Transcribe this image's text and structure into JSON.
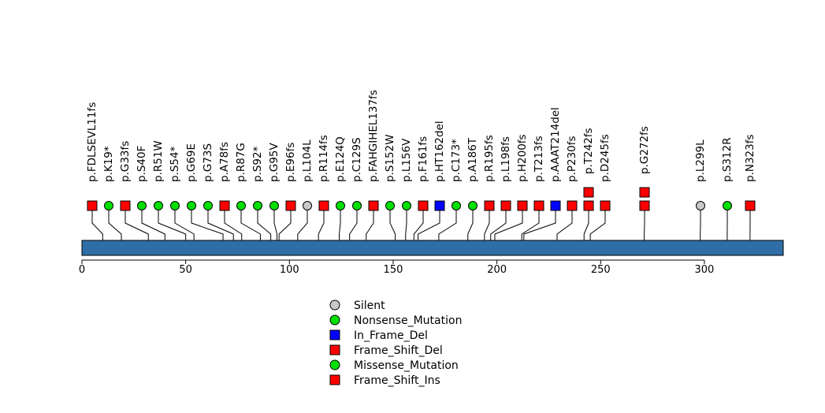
{
  "chart_data": {
    "type": "lollipop",
    "title": "",
    "xlabel": "",
    "ylabel": "",
    "xlim": [
      0,
      338
    ],
    "x_ticks": [
      0,
      50,
      100,
      150,
      200,
      250,
      300
    ],
    "protein_length": 338,
    "colors": {
      "Silent": "#c8c8c8",
      "Nonsense_Mutation": "#00e000",
      "In_Frame_Del": "#0000ff",
      "Frame_Shift_Del": "#ff0000",
      "Missense_Mutation": "#00e000",
      "Frame_Shift_Ins": "#ff0000",
      "protein_bar": "#2f6ea6"
    },
    "legend": [
      {
        "label": "Silent",
        "shape": "circle",
        "type": "Silent"
      },
      {
        "label": "Nonsense_Mutation",
        "shape": "circle",
        "type": "Nonsense_Mutation"
      },
      {
        "label": "In_Frame_Del",
        "shape": "square",
        "type": "In_Frame_Del"
      },
      {
        "label": "Frame_Shift_Del",
        "shape": "square",
        "type": "Frame_Shift_Del"
      },
      {
        "label": "Missense_Mutation",
        "shape": "circle",
        "type": "Missense_Mutation"
      },
      {
        "label": "Frame_Shift_Ins",
        "shape": "square",
        "type": "Frame_Shift_Ins"
      }
    ],
    "mutations": [
      {
        "label": "p.FDLSEVL11fs",
        "pos": 10,
        "type": "Frame_Shift_Del",
        "count": 1
      },
      {
        "label": "p.K19*",
        "pos": 19,
        "type": "Nonsense_Mutation",
        "count": 1
      },
      {
        "label": "p.G33fs",
        "pos": 32,
        "type": "Frame_Shift_Del",
        "count": 1
      },
      {
        "label": "p.S40F",
        "pos": 40,
        "type": "Missense_Mutation",
        "count": 1
      },
      {
        "label": "p.R51W",
        "pos": 50,
        "type": "Missense_Mutation",
        "count": 1
      },
      {
        "label": "p.S54*",
        "pos": 54,
        "type": "Nonsense_Mutation",
        "count": 1
      },
      {
        "label": "p.G69E",
        "pos": 68,
        "type": "Missense_Mutation",
        "count": 1
      },
      {
        "label": "p.G73S",
        "pos": 73,
        "type": "Missense_Mutation",
        "count": 1
      },
      {
        "label": "p.A78fs",
        "pos": 77,
        "type": "Frame_Shift_Del",
        "count": 1
      },
      {
        "label": "p.R87G",
        "pos": 86,
        "type": "Missense_Mutation",
        "count": 1
      },
      {
        "label": "p.S92*",
        "pos": 91,
        "type": "Nonsense_Mutation",
        "count": 1
      },
      {
        "label": "p.G95V",
        "pos": 94,
        "type": "Missense_Mutation",
        "count": 1
      },
      {
        "label": "p.E96fs",
        "pos": 95,
        "type": "Frame_Shift_Del",
        "count": 1
      },
      {
        "label": "p.L104L",
        "pos": 104,
        "type": "Silent",
        "count": 1
      },
      {
        "label": "p.R114fs",
        "pos": 114,
        "type": "Frame_Shift_Del",
        "count": 1
      },
      {
        "label": "p.E124Q",
        "pos": 124,
        "type": "Missense_Mutation",
        "count": 1
      },
      {
        "label": "p.C129S",
        "pos": 129,
        "type": "Missense_Mutation",
        "count": 1
      },
      {
        "label": "p.FAHGIHEL137fs",
        "pos": 137,
        "type": "Frame_Shift_Del",
        "count": 1
      },
      {
        "label": "p.S152W",
        "pos": 151,
        "type": "Missense_Mutation",
        "count": 1
      },
      {
        "label": "p.L156V",
        "pos": 156,
        "type": "Missense_Mutation",
        "count": 1
      },
      {
        "label": "p.F161fs",
        "pos": 160,
        "type": "Frame_Shift_Del",
        "count": 1
      },
      {
        "label": "p.HT162del",
        "pos": 162,
        "type": "In_Frame_Del",
        "count": 1
      },
      {
        "label": "p.C173*",
        "pos": 172,
        "type": "Nonsense_Mutation",
        "count": 1
      },
      {
        "label": "p.A186T",
        "pos": 186,
        "type": "Missense_Mutation",
        "count": 1
      },
      {
        "label": "p.R195fs",
        "pos": 194,
        "type": "Frame_Shift_Del",
        "count": 1
      },
      {
        "label": "p.L198fs",
        "pos": 197,
        "type": "Frame_Shift_Del",
        "count": 1
      },
      {
        "label": "p.H200fs",
        "pos": 199,
        "type": "Frame_Shift_Del",
        "count": 1
      },
      {
        "label": "p.T213fs",
        "pos": 212,
        "type": "Frame_Shift_Del",
        "count": 1
      },
      {
        "label": "p.AAAT214del",
        "pos": 213,
        "type": "In_Frame_Del",
        "count": 1
      },
      {
        "label": "p.P230fs",
        "pos": 229,
        "type": "Frame_Shift_Del",
        "count": 1
      },
      {
        "label": "p.T242fs",
        "pos": 242,
        "type": "Frame_Shift_Del",
        "count": 2
      },
      {
        "label": "p.D245fs",
        "pos": 245,
        "type": "Frame_Shift_Del",
        "count": 1
      },
      {
        "label": "p.G272fs",
        "pos": 271,
        "type": "Frame_Shift_Del",
        "count": 2
      },
      {
        "label": "p.L299L",
        "pos": 298,
        "type": "Silent",
        "count": 1
      },
      {
        "label": "p.S312R",
        "pos": 311,
        "type": "Missense_Mutation",
        "count": 1
      },
      {
        "label": "p.N323fs",
        "pos": 322,
        "type": "Frame_Shift_Del",
        "count": 1
      }
    ]
  }
}
